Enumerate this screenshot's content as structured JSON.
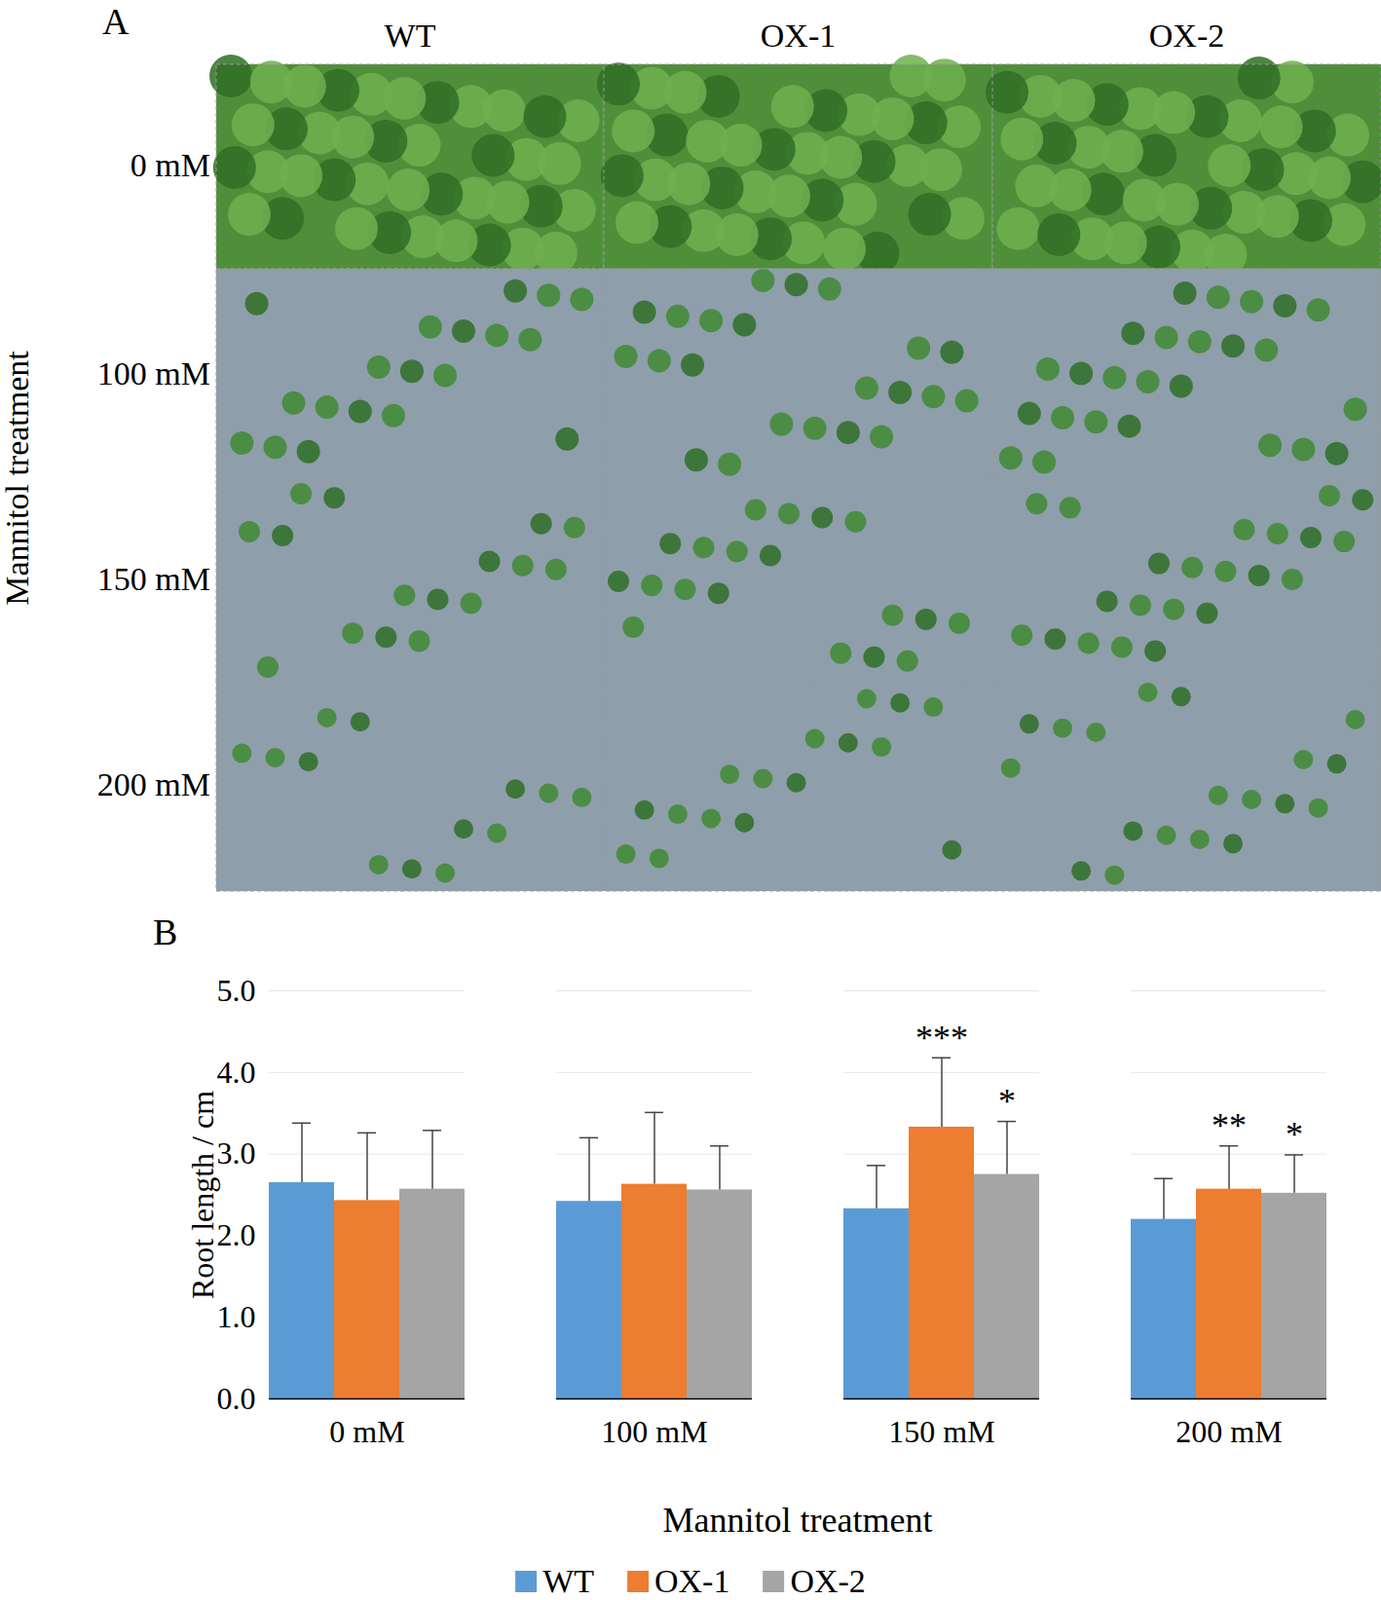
{
  "panel_a": {
    "panel_label": "A",
    "type": "photo_grid",
    "columns": [
      "WT",
      "OX-1",
      "OX-2"
    ],
    "rows": [
      "0 mM",
      "100 mM",
      "150 mM",
      "200 mM"
    ],
    "row_title": "Mannitol treatment"
  },
  "chart_data": {
    "type": "bar",
    "panel_label": "B",
    "categories": [
      "0 mM",
      "100 mM",
      "150 mM",
      "200 mM"
    ],
    "x_label": "Mannitol treatment",
    "y_label": "Root length / cm",
    "ylim": [
      0,
      5
    ],
    "yticks": [
      0,
      1,
      2,
      3,
      4,
      5
    ],
    "grid": true,
    "legend": "bottom",
    "series": [
      {
        "name": "WT",
        "color": "#5b9bd5",
        "values": [
          2.65,
          2.42,
          2.33,
          2.2
        ],
        "errors": [
          0.73,
          0.78,
          0.53,
          0.5
        ]
      },
      {
        "name": "OX-1",
        "color": "#ed7d31",
        "values": [
          2.43,
          2.63,
          3.33,
          2.57
        ],
        "errors": [
          0.83,
          0.88,
          0.85,
          0.53
        ],
        "significance": [
          null,
          null,
          "***",
          "**"
        ]
      },
      {
        "name": "OX-2",
        "color": "#a5a5a5",
        "values": [
          2.57,
          2.56,
          2.75,
          2.52
        ],
        "errors": [
          0.72,
          0.54,
          0.65,
          0.47
        ],
        "significance": [
          null,
          null,
          "*",
          "*"
        ]
      }
    ]
  }
}
